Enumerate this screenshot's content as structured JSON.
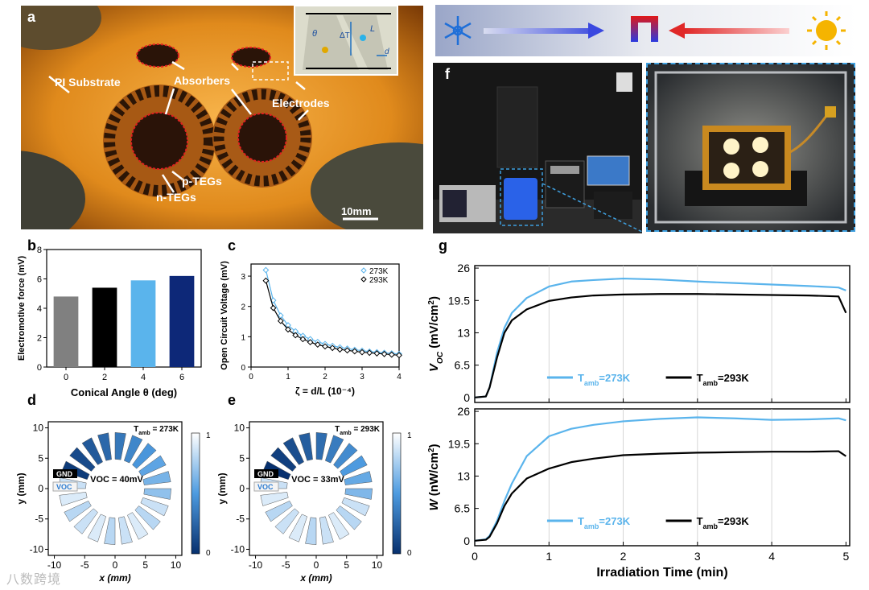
{
  "panels": {
    "a": {
      "letter": "a",
      "labels": {
        "pi_substrate": "PI Substrate",
        "absorbers": "Absorbers",
        "electrodes": "Electrodes",
        "p_tegs": "p-TEGs",
        "n_tegs": "n-TEGs",
        "scale": "10mm"
      },
      "inset": {
        "theta": "θ",
        "delta_t": "ΔT",
        "l": "L",
        "d": "d"
      }
    },
    "b": {
      "letter": "b"
    },
    "c": {
      "letter": "c"
    },
    "d": {
      "letter": "d",
      "tamb": "T",
      "tamb_sub": "amb",
      "tamb_val": " = 273K",
      "voc_label": "VOC = 40mV",
      "gnd": "GND",
      "voc": "VOC",
      "ylabel": "y (mm)",
      "xlabel": "x (mm)",
      "yticks": [
        "10",
        "5",
        "0",
        "-5",
        "-10"
      ],
      "xticks": [
        "-10",
        "-5",
        "0",
        "5",
        "10"
      ],
      "cbar": [
        "1",
        "0"
      ]
    },
    "e": {
      "letter": "e",
      "tamb": "T",
      "tamb_sub": "amb",
      "tamb_val": " = 293K",
      "voc_label": "VOC = 33mV",
      "gnd": "GND",
      "voc": "VOC",
      "ylabel": "y (mm)",
      "xlabel": "x (mm)",
      "yticks": [
        "10",
        "5",
        "0",
        "-5",
        "-10"
      ],
      "xticks": [
        "-10",
        "-5",
        "0",
        "5",
        "10"
      ],
      "cbar": [
        "1",
        "0"
      ]
    },
    "f": {
      "letter": "f"
    },
    "g": {
      "letter": "g"
    }
  },
  "colors": {
    "light_blue": "#5ab4ec",
    "black": "#000000",
    "gray": "#808080",
    "navy": "#102a7a",
    "red": "#e53030"
  },
  "watermark": "八数跨境",
  "chart_data": [
    {
      "id": "b",
      "type": "bar",
      "categories": [
        "0",
        "2",
        "4",
        "6"
      ],
      "values": [
        4.8,
        5.4,
        5.9,
        6.2
      ],
      "colors": [
        "#808080",
        "#000000",
        "#5ab4ec",
        "#0d2878"
      ],
      "title": "",
      "xlabel": "Conical Angle θ (deg)",
      "ylabel": "Electromotive force (mV)",
      "ylim": [
        0,
        8
      ],
      "yticks": [
        "0",
        "2",
        "4",
        "6",
        "8"
      ]
    },
    {
      "id": "c",
      "type": "line",
      "x": [
        0.4,
        0.6,
        0.8,
        1.0,
        1.2,
        1.4,
        1.6,
        1.8,
        2.0,
        2.2,
        2.4,
        2.6,
        2.8,
        3.0,
        3.2,
        3.4,
        3.6,
        3.8,
        4.0
      ],
      "series": [
        {
          "name": "273K",
          "values": [
            3.2,
            2.2,
            1.7,
            1.38,
            1.18,
            1.03,
            0.92,
            0.83,
            0.76,
            0.7,
            0.65,
            0.61,
            0.57,
            0.54,
            0.51,
            0.49,
            0.47,
            0.45,
            0.43
          ]
        },
        {
          "name": "293K",
          "values": [
            2.85,
            1.95,
            1.52,
            1.24,
            1.05,
            0.92,
            0.82,
            0.74,
            0.68,
            0.63,
            0.58,
            0.55,
            0.52,
            0.49,
            0.47,
            0.45,
            0.43,
            0.41,
            0.39
          ]
        }
      ],
      "xlabel": "ζ = d/L (10⁻⁴)",
      "ylabel": "Open Circuit Voltage (mV)",
      "xlim": [
        0,
        4
      ],
      "ylim": [
        0,
        3.4
      ],
      "xticks": [
        "0",
        "1",
        "2",
        "3",
        "4"
      ],
      "yticks": [
        "0",
        "1",
        "2",
        "3"
      ],
      "legend": [
        "273K",
        "293K"
      ]
    },
    {
      "id": "g_top",
      "type": "line",
      "x": [
        0,
        0.15,
        0.2,
        0.3,
        0.4,
        0.5,
        0.7,
        1.0,
        1.3,
        1.6,
        2.0,
        2.5,
        3.0,
        3.5,
        4.0,
        4.5,
        4.9,
        5.0
      ],
      "series": [
        {
          "name": "Tamb=273K",
          "values": [
            0,
            0.2,
            2,
            9,
            14,
            17,
            20,
            22.3,
            23.3,
            23.6,
            23.9,
            23.7,
            23.3,
            23.0,
            22.7,
            22.4,
            22.1,
            21.5
          ]
        },
        {
          "name": "Tamb=293K",
          "values": [
            0,
            0.2,
            2,
            8,
            13,
            15.5,
            17.7,
            19.4,
            20.1,
            20.5,
            20.7,
            20.8,
            20.8,
            20.7,
            20.6,
            20.5,
            20.3,
            17
          ]
        }
      ],
      "xlabel": "",
      "ylabel": "VOC (mV/cm2)",
      "ylabel_parts": [
        "V",
        "OC",
        " (mV/cm",
        "2",
        ")"
      ],
      "xlim": [
        0,
        5.05
      ],
      "ylim": [
        -1,
        26.5
      ],
      "yticks": [
        "0",
        "6.5",
        "13",
        "19.5",
        "26"
      ],
      "legend": [
        "T",
        "amb",
        "=273K",
        "T",
        "amb",
        "=293K"
      ]
    },
    {
      "id": "g_bottom",
      "type": "line",
      "x": [
        0,
        0.15,
        0.2,
        0.3,
        0.4,
        0.5,
        0.7,
        1.0,
        1.3,
        1.6,
        2.0,
        2.5,
        3.0,
        3.5,
        4.0,
        4.5,
        4.9,
        5.0
      ],
      "series": [
        {
          "name": "Tamb=273K",
          "values": [
            0,
            0.3,
            1,
            4,
            8,
            11.5,
            17,
            21,
            22.5,
            23.3,
            24.0,
            24.5,
            24.8,
            24.6,
            24.3,
            24.4,
            24.6,
            24.2
          ]
        },
        {
          "name": "Tamb=293K",
          "values": [
            0,
            0.2,
            0.8,
            3.5,
            7,
            9.5,
            12.5,
            14.5,
            15.8,
            16.5,
            17.2,
            17.5,
            17.7,
            17.8,
            17.9,
            17.9,
            18.0,
            17.0
          ]
        }
      ],
      "xlabel": "Irradiation Time (min)",
      "ylabel": "W (nW/cm2)",
      "ylabel_parts": [
        "W",
        " (nW/cm",
        "2",
        ")"
      ],
      "xlim": [
        0,
        5.05
      ],
      "ylim": [
        -1,
        26.5
      ],
      "xticks": [
        "0",
        "1",
        "2",
        "3",
        "4",
        "5"
      ],
      "yticks": [
        "0",
        "6.5",
        "13",
        "19.5",
        "26"
      ],
      "legend": [
        "T",
        "amb",
        "=273K",
        "T",
        "amb",
        "=293K"
      ]
    }
  ]
}
